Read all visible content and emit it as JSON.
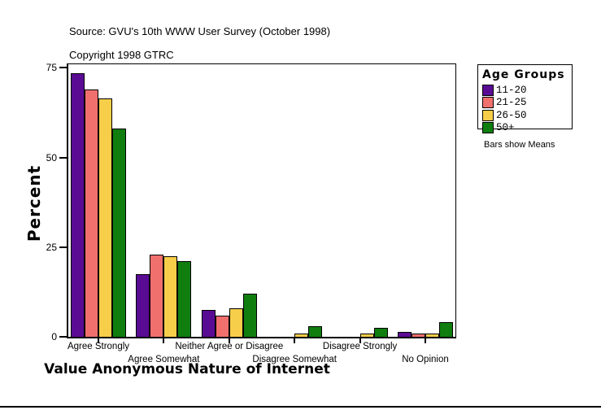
{
  "header": {
    "source": "Source: GVU's 10th WWW User Survey (October 1998)",
    "copyright": "Copyright 1998 GTRC"
  },
  "chart_data": {
    "type": "bar",
    "title": "Value Anonymous Nature of Internet",
    "ylabel": "Percent",
    "ylim": [
      0,
      75
    ],
    "yticks": [
      0,
      25,
      50,
      75
    ],
    "grid": false,
    "categories": [
      "Agree Strongly",
      "Agree Somewhat",
      "Neither Agree or Disagree",
      "Disagree Somewhat",
      "Disagree Strongly",
      "No Opinion"
    ],
    "series": [
      {
        "name": "11-20",
        "color": "#5a0b94",
        "values": [
          73.5,
          17.5,
          7.5,
          0,
          0,
          1.3
        ]
      },
      {
        "name": "21-25",
        "color": "#f0706e",
        "values": [
          69,
          23,
          6,
          0,
          0,
          1
        ]
      },
      {
        "name": "26-50",
        "color": "#f6ce4a",
        "values": [
          66.5,
          22.5,
          8,
          1,
          1,
          0.8
        ]
      },
      {
        "name": "50+",
        "color": "#0f7e0f",
        "values": [
          58,
          21,
          12,
          3,
          2.5,
          4
        ]
      }
    ],
    "legend": {
      "title": "Age Groups",
      "note": "Bars show Means",
      "position": "right"
    }
  }
}
